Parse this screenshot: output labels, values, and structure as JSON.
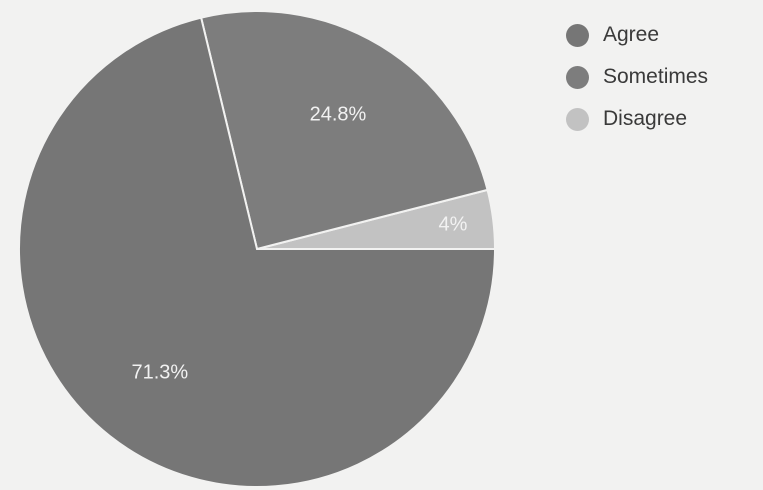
{
  "chart_data": {
    "type": "pie",
    "title": "",
    "slices": [
      {
        "label": "Agree",
        "value": 71.3,
        "display": "71.3%",
        "color": "#767676"
      },
      {
        "label": "Sometimes",
        "value": 24.8,
        "display": "24.8%",
        "color": "#7d7d7d"
      },
      {
        "label": "Disagree",
        "value": 4.0,
        "display": "4%",
        "color": "#c2c2c2"
      }
    ],
    "legend_position": "top-right"
  }
}
